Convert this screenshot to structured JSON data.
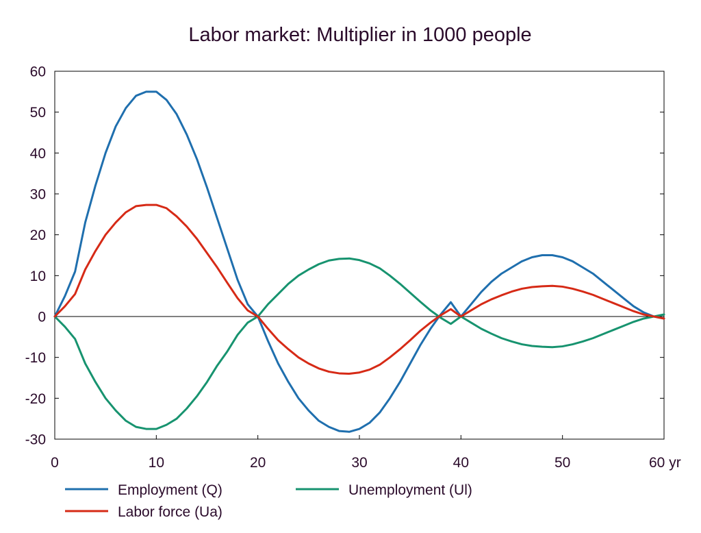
{
  "chart_data": {
    "type": "line",
    "title": "Labor market: Multiplier in 1000 people",
    "xlabel": "",
    "ylabel": "",
    "x_unit_label": "yr",
    "xlim": [
      0,
      60
    ],
    "ylim": [
      -30,
      60
    ],
    "x_ticks": [
      0,
      10,
      20,
      30,
      40,
      50,
      60
    ],
    "x_tick_labels": [
      "0",
      "10",
      "20",
      "30",
      "40",
      "50",
      "60 yr"
    ],
    "y_ticks": [
      60,
      50,
      40,
      30,
      20,
      10,
      0,
      -10,
      -20,
      -30
    ],
    "y_tick_labels": [
      "60",
      "50",
      "40",
      "30",
      "20",
      "10",
      "0",
      "-10",
      "-20",
      "-30"
    ],
    "grid": false,
    "zero_line": true,
    "legend_position": "bottom",
    "x": [
      0,
      1,
      2,
      3,
      4,
      5,
      6,
      7,
      8,
      9,
      10,
      11,
      12,
      13,
      14,
      15,
      16,
      17,
      18,
      19,
      20,
      21,
      22,
      23,
      24,
      25,
      26,
      27,
      28,
      29,
      30,
      31,
      32,
      33,
      34,
      35,
      36,
      37,
      38,
      39,
      40,
      41,
      42,
      43,
      44,
      45,
      46,
      47,
      48,
      49,
      50,
      51,
      52,
      53,
      54,
      55,
      56,
      57,
      58,
      59,
      60
    ],
    "series": [
      {
        "name": "Employment (Q)",
        "color": "#1f6fae",
        "values": [
          0,
          5,
          11,
          23,
          32,
          40,
          46.5,
          51,
          54,
          55,
          55,
          53,
          49.5,
          44.5,
          38.5,
          31.5,
          24,
          16.5,
          9,
          3,
          0,
          -6,
          -11.5,
          -16,
          -20,
          -23,
          -25.5,
          -27,
          -28,
          -28.2,
          -27.5,
          -26,
          -23.5,
          -20,
          -16,
          -11.5,
          -7,
          -3,
          0.5,
          3.5,
          0,
          3,
          6,
          8.5,
          10.5,
          12,
          13.5,
          14.5,
          15,
          15,
          14.5,
          13.5,
          12,
          10.5,
          8.5,
          6.5,
          4.5,
          2.5,
          1,
          0,
          -0.5
        ]
      },
      {
        "name": "Unemployment (Ul)",
        "color": "#17936f",
        "values": [
          0,
          -2.5,
          -5.5,
          -11.5,
          -16,
          -20,
          -23,
          -25.5,
          -27,
          -27.5,
          -27.5,
          -26.5,
          -25,
          -22.5,
          -19.5,
          -16,
          -12,
          -8.5,
          -4.5,
          -1.5,
          0,
          3,
          5.5,
          8,
          10,
          11.5,
          12.8,
          13.7,
          14.1,
          14.2,
          13.8,
          13,
          11.8,
          10,
          8,
          5.8,
          3.6,
          1.5,
          -0.3,
          -1.8,
          0,
          -1.5,
          -3,
          -4.2,
          -5.3,
          -6.1,
          -6.8,
          -7.2,
          -7.4,
          -7.5,
          -7.3,
          -6.8,
          -6.1,
          -5.3,
          -4.3,
          -3.3,
          -2.3,
          -1.3,
          -0.5,
          0,
          0.5
        ]
      },
      {
        "name": "Labor force (Ua)",
        "color": "#d62a16",
        "values": [
          0,
          2.5,
          5.5,
          11.5,
          16,
          20,
          23,
          25.5,
          27,
          27.3,
          27.3,
          26.5,
          24.5,
          22,
          19,
          15.5,
          12,
          8.2,
          4.5,
          1.5,
          0,
          -3,
          -5.8,
          -8,
          -10,
          -11.5,
          -12.7,
          -13.5,
          -13.9,
          -14,
          -13.7,
          -13,
          -11.8,
          -10,
          -8,
          -5.8,
          -3.5,
          -1.5,
          0.3,
          1.8,
          0,
          1.5,
          3,
          4.2,
          5.2,
          6.1,
          6.8,
          7.2,
          7.4,
          7.5,
          7.3,
          6.8,
          6.1,
          5.3,
          4.3,
          3.3,
          2.3,
          1.3,
          0.5,
          0,
          -0.5
        ]
      }
    ],
    "legend": [
      {
        "name": "Employment (Q)",
        "color": "#1f6fae"
      },
      {
        "name": "Unemployment (Ul)",
        "color": "#17936f"
      },
      {
        "name": "Labor force (Ua)",
        "color": "#d62a16"
      }
    ]
  }
}
